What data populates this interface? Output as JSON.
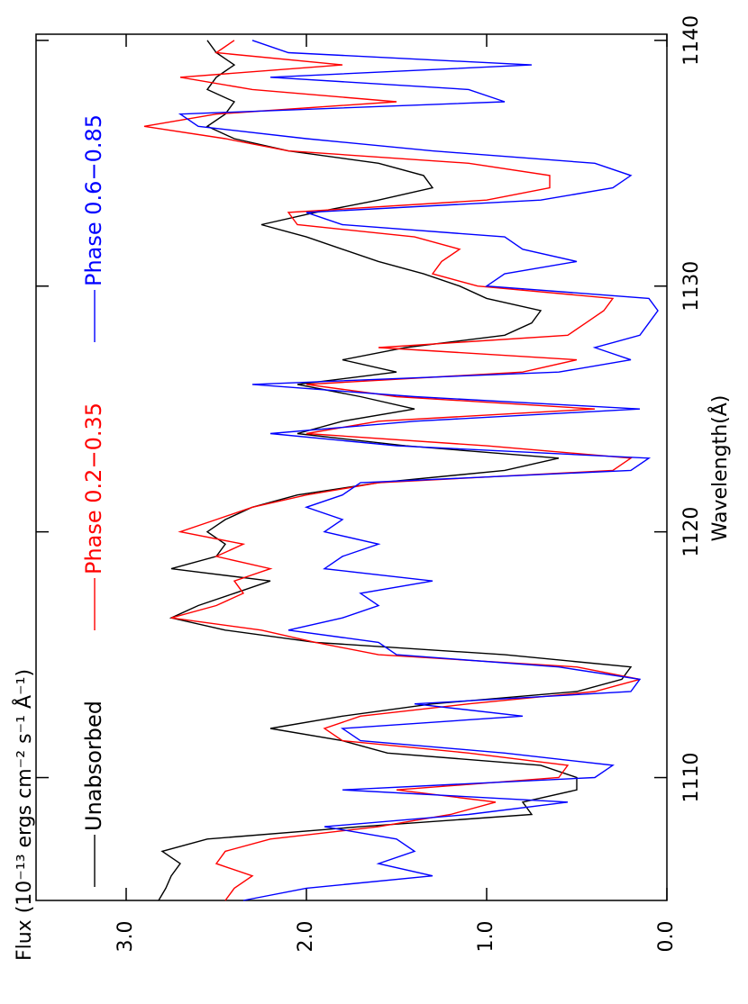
{
  "chart_data": {
    "type": "line",
    "x_label": "Wavelength(Å)",
    "y_label": "Flux (10⁻¹³ ergs cm⁻² s⁻¹ Å⁻¹)",
    "x": [
      1105,
      1105.5,
      1106,
      1106.5,
      1107,
      1107.5,
      1108,
      1108.5,
      1109,
      1109.5,
      1110,
      1110.5,
      1111,
      1111.5,
      1112,
      1112.5,
      1113,
      1113.5,
      1114,
      1114.5,
      1115,
      1115.5,
      1116,
      1116.5,
      1117,
      1117.5,
      1118,
      1118.5,
      1119,
      1119.5,
      1120,
      1120.5,
      1121,
      1121.5,
      1122,
      1122.5,
      1123,
      1123.5,
      1124,
      1124.5,
      1125,
      1125.5,
      1126,
      1126.5,
      1127,
      1127.5,
      1128,
      1128.5,
      1129,
      1129.5,
      1130,
      1130.5,
      1131,
      1131.5,
      1132,
      1132.5,
      1133,
      1133.5,
      1134,
      1134.5,
      1135,
      1135.5,
      1136,
      1136.5,
      1137,
      1137.5,
      1138,
      1138.5,
      1139,
      1139.5,
      1140
    ],
    "series": [
      {
        "name": "Unabsorbed",
        "color": "#000000",
        "values": [
          2.82,
          2.78,
          2.75,
          2.7,
          2.8,
          2.55,
          1.7,
          0.75,
          0.8,
          0.5,
          0.5,
          0.7,
          1.55,
          1.8,
          2.2,
          1.8,
          1.3,
          0.5,
          0.25,
          0.2,
          0.9,
          1.95,
          2.45,
          2.75,
          2.6,
          2.4,
          2.2,
          2.75,
          2.5,
          2.45,
          2.55,
          2.45,
          2.3,
          2.05,
          1.6,
          0.9,
          0.6,
          1.45,
          2.05,
          1.8,
          1.4,
          1.7,
          2.05,
          1.5,
          1.8,
          1.45,
          0.9,
          0.75,
          0.7,
          1.0,
          1.15,
          1.35,
          1.6,
          1.8,
          2.0,
          2.25,
          1.95,
          1.6,
          1.3,
          1.35,
          1.6,
          2.1,
          2.4,
          2.55,
          2.45,
          2.4,
          2.55,
          2.5,
          2.4,
          2.5,
          2.55
        ]
      },
      {
        "name": "Phase 0.2−0.35",
        "color": "#ff0000",
        "values": [
          2.45,
          2.4,
          2.3,
          2.5,
          2.45,
          2.2,
          1.6,
          1.2,
          0.95,
          1.5,
          0.6,
          0.55,
          1.1,
          1.8,
          1.9,
          1.7,
          1.1,
          0.4,
          0.15,
          0.5,
          1.6,
          1.95,
          2.25,
          2.75,
          2.5,
          2.35,
          2.4,
          2.2,
          2.5,
          2.35,
          2.7,
          2.5,
          2.3,
          2.0,
          1.6,
          0.3,
          0.2,
          1.0,
          2.0,
          1.6,
          0.4,
          1.5,
          2.0,
          0.8,
          0.5,
          1.6,
          0.55,
          0.45,
          0.35,
          0.3,
          1.05,
          1.3,
          1.25,
          1.15,
          1.4,
          2.05,
          2.1,
          1.0,
          0.65,
          0.65,
          1.1,
          2.1,
          2.45,
          2.9,
          2.5,
          1.5,
          2.3,
          2.7,
          1.8,
          2.5,
          2.4
        ]
      },
      {
        "name": "Phase 0.6−0.85",
        "color": "#0000ff",
        "values": [
          2.35,
          2.0,
          1.3,
          1.6,
          1.4,
          1.5,
          1.9,
          1.1,
          0.55,
          1.8,
          0.4,
          0.3,
          0.9,
          1.7,
          1.8,
          0.8,
          1.4,
          0.2,
          0.15,
          0.6,
          1.5,
          1.6,
          2.1,
          1.8,
          1.6,
          1.7,
          1.3,
          1.9,
          1.8,
          1.6,
          1.9,
          1.8,
          2.0,
          1.8,
          1.7,
          0.2,
          0.1,
          1.5,
          2.2,
          1.4,
          0.15,
          1.4,
          2.3,
          0.6,
          0.2,
          0.4,
          0.15,
          0.1,
          0.05,
          0.1,
          1.0,
          0.9,
          0.5,
          0.8,
          0.9,
          1.8,
          2.0,
          0.7,
          0.3,
          0.2,
          0.4,
          1.3,
          2.0,
          2.6,
          2.7,
          0.9,
          1.1,
          2.2,
          0.75,
          2.1,
          2.3
        ]
      }
    ],
    "xlim": [
      1105,
      1140.25
    ],
    "xticks": [
      1110,
      1120,
      1130,
      1140
    ],
    "ylim": [
      0,
      3.5
    ],
    "yticks": [
      {
        "value": 0,
        "label": "0.0"
      },
      {
        "value": 1,
        "label": "1.0"
      },
      {
        "value": 2,
        "label": "2.0"
      },
      {
        "value": 3,
        "label": "3.0"
      }
    ]
  }
}
